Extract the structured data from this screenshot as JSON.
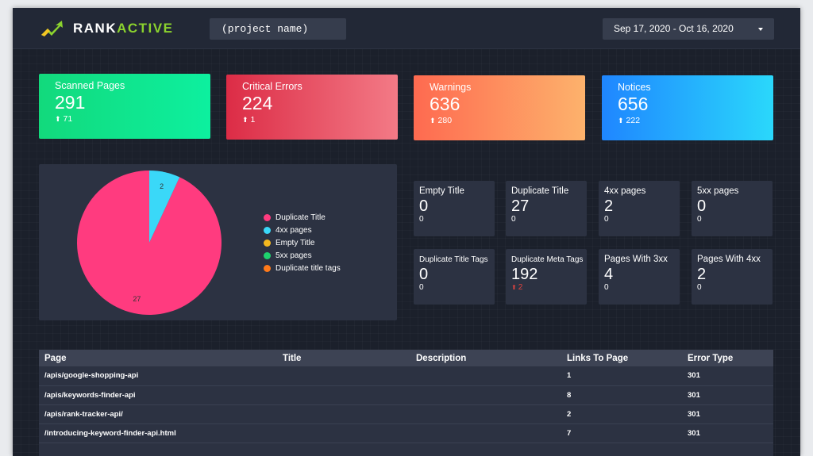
{
  "brand": {
    "name_part1": "RANK",
    "name_part2": "ACTIVE"
  },
  "header": {
    "project_name": "(project name)",
    "date_range": "Sep 17, 2020 - Oct 16, 2020"
  },
  "stats": [
    {
      "label": "Scanned Pages",
      "value": "291",
      "delta": "71"
    },
    {
      "label": "Critical Errors",
      "value": "224",
      "delta": "1"
    },
    {
      "label": "Warnings",
      "value": "636",
      "delta": "280"
    },
    {
      "label": "Notices",
      "value": "656",
      "delta": "222"
    }
  ],
  "chart_data": {
    "type": "pie",
    "slices": [
      {
        "label": "Duplicate Title",
        "value": 27,
        "color": "#ff3b7f"
      },
      {
        "label": "4xx pages",
        "value": 2,
        "color": "#3ad8f8"
      },
      {
        "label": "Empty Title",
        "value": 0,
        "color": "#f4b81f"
      },
      {
        "label": "5xx pages",
        "value": 0,
        "color": "#1ed36e"
      },
      {
        "label": "Duplicate title tags",
        "value": 0,
        "color": "#ff7a1a"
      }
    ],
    "data_labels": [
      "27",
      "2"
    ]
  },
  "metrics": [
    {
      "label": "Empty Title",
      "value": "0",
      "sub": "0"
    },
    {
      "label": "Duplicate Title",
      "value": "27",
      "sub": "0"
    },
    {
      "label": "4xx pages",
      "value": "2",
      "sub": "0"
    },
    {
      "label": "5xx pages",
      "value": "0",
      "sub": "0"
    },
    {
      "label": "Duplicate Title Tags",
      "value": "0",
      "sub": "0"
    },
    {
      "label": "Duplicate Meta Tags",
      "value": "192",
      "sub": "2"
    },
    {
      "label": "Pages With 3xx",
      "value": "4",
      "sub": "0"
    },
    {
      "label": "Pages With 4xx",
      "value": "2",
      "sub": "0"
    }
  ],
  "table": {
    "headers": [
      "Page",
      "Title",
      "Description",
      "Links To Page",
      "Error Type"
    ],
    "rows": [
      [
        "/apis/google-shopping-api",
        "",
        "",
        "1",
        "301"
      ],
      [
        "/apis/keywords-finder-api",
        "",
        "",
        "8",
        "301"
      ],
      [
        "/apis/rank-tracker-api/",
        "",
        "",
        "2",
        "301"
      ],
      [
        "/introducing-keyword-finder-api.html",
        "",
        "",
        "7",
        "301"
      ]
    ]
  },
  "colors": {
    "background": "#1b202b",
    "panel": "#2c3242",
    "brand_accent": "#8bd22e",
    "delta_up_red": "#e2443f"
  },
  "icons": {
    "logo": "rising-arrow-logo-icon",
    "stat_delta": "arrow-up-icon",
    "date_dropdown": "caret-down-icon"
  }
}
